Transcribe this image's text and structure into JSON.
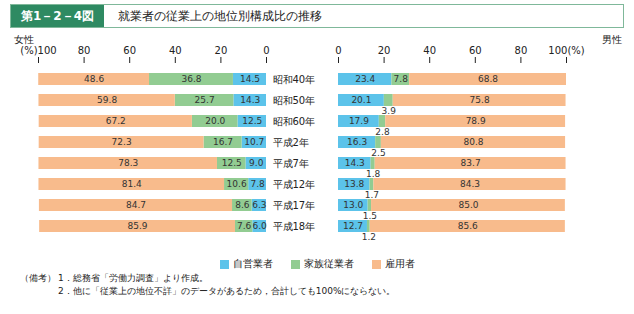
{
  "figure_number": "第1－2－4図",
  "title": "就業者の従業上の地位別構成比の推移",
  "notes_label": "（備考）",
  "notes": [
    "1．総務省「労働力調査」より作成。",
    "2．他に「従業上の地位不詳」のデータがあるため，合計しても100%にならない。"
  ],
  "chart_data": [
    {
      "type": "bar",
      "orientation": "horizontal",
      "stacked": true,
      "data_labels": true,
      "tick_labels": true,
      "legend": "bottom",
      "x_label": "女性",
      "categories": [
        "昭和40年",
        "昭和50年",
        "昭和60年",
        "平成2年",
        "平成7年",
        "平成12年",
        "平成17年",
        "平成18年"
      ],
      "xlim": [
        100,
        0
      ],
      "xticks": [
        {
          "value": 100,
          "label": "(%)100"
        },
        80,
        60,
        40,
        20,
        0
      ],
      "series": [
        {
          "name": "自営業者",
          "color": "#5cc3ea",
          "values": [
            14.5,
            14.3,
            12.5,
            10.7,
            9.0,
            7.8,
            6.3,
            6.0
          ],
          "value_labels": [
            "14.5",
            "14.3",
            "12.5",
            "10.7",
            "9.0",
            "7.8",
            "6.3",
            "6.0"
          ]
        },
        {
          "name": "家族従業者",
          "color": "#92cc92",
          "values": [
            36.8,
            25.7,
            20.0,
            16.7,
            12.5,
            10.6,
            8.6,
            7.6
          ],
          "value_labels": [
            "36.8",
            "25.7",
            "20.0",
            "16.7",
            "12.5",
            "10.6",
            "8.6",
            "7.6"
          ]
        },
        {
          "name": "雇用者",
          "color": "#f8bb8c",
          "values": [
            48.6,
            59.8,
            67.2,
            72.3,
            78.3,
            81.4,
            84.7,
            85.9
          ],
          "value_labels": [
            "48.6",
            "59.8",
            "67.2",
            "72.3",
            "78.3",
            "81.4",
            "84.7",
            "85.9"
          ]
        }
      ]
    },
    {
      "type": "bar",
      "orientation": "horizontal",
      "stacked": true,
      "data_labels": true,
      "tick_labels": "x",
      "x_label": "男性",
      "categories": [
        "昭和40年",
        "昭和50年",
        "昭和60年",
        "平成2年",
        "平成7年",
        "平成12年",
        "平成17年",
        "平成18年"
      ],
      "xlim": [
        0,
        100
      ],
      "xticks": [
        0,
        20,
        40,
        60,
        80,
        {
          "value": 100,
          "label": "100(%)"
        }
      ],
      "series": [
        {
          "name": "自営業者",
          "color": "#5cc3ea",
          "values": [
            23.4,
            20.1,
            17.9,
            16.3,
            14.3,
            13.8,
            13.0,
            12.7
          ],
          "value_labels": [
            "23.4",
            "20.1",
            "17.9",
            "16.3",
            "14.3",
            "13.8",
            "13.0",
            "12.7"
          ]
        },
        {
          "name": "家族従業者",
          "color": "#92cc92",
          "values": [
            7.8,
            3.9,
            2.8,
            2.5,
            1.8,
            1.7,
            1.5,
            1.2
          ],
          "value_labels": [
            "7.8",
            "3.9",
            "2.8",
            "2.5",
            "1.8",
            "1.7",
            "1.5",
            "1.2"
          ]
        },
        {
          "name": "雇用者",
          "color": "#f8bb8c",
          "values": [
            68.8,
            75.8,
            78.9,
            80.8,
            83.7,
            84.3,
            85.0,
            85.6
          ],
          "value_labels": [
            "68.8",
            "75.8",
            "78.9",
            "80.8",
            "83.7",
            "84.3",
            "85.0",
            "85.6"
          ]
        }
      ]
    }
  ]
}
